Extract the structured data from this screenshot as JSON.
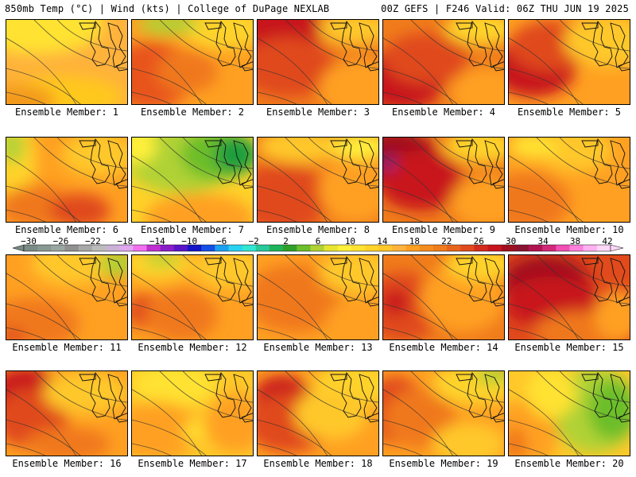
{
  "header": {
    "left": "850mb Temp (°C) | Wind (kts) | College of DuPage NEXLAB",
    "right": "00Z GEFS | F246 Valid: 06Z THU JUN 19 2025"
  },
  "members": [
    {
      "label": "Ensemble Member: 1",
      "base": "#ffb23c",
      "blobs": [
        [
          "#ffe233",
          0.25,
          0.05,
          0.55,
          0.35
        ],
        [
          "#ffc81e",
          0.45,
          0.9,
          0.5,
          0.25
        ],
        [
          "#f39a1e",
          0.1,
          0.95,
          0.3,
          0.2
        ]
      ]
    },
    {
      "label": "Ensemble Member: 2",
      "base": "#ffa022",
      "blobs": [
        [
          "#e8551c",
          0.15,
          0.65,
          0.35,
          0.4
        ],
        [
          "#ffd32a",
          0.75,
          0.1,
          0.35,
          0.25
        ],
        [
          "#b0d234",
          0.3,
          0.05,
          0.25,
          0.12
        ],
        [
          "#f0781c",
          0.45,
          0.6,
          0.25,
          0.25
        ]
      ]
    },
    {
      "label": "Ensemble Member: 3",
      "base": "#f07c1c",
      "blobs": [
        [
          "#c8141e",
          0.15,
          0.1,
          0.4,
          0.3
        ],
        [
          "#e04a1c",
          0.25,
          0.55,
          0.4,
          0.35
        ],
        [
          "#ffa022",
          0.85,
          0.8,
          0.35,
          0.35
        ],
        [
          "#ffc82a",
          0.8,
          0.1,
          0.3,
          0.2
        ]
      ]
    },
    {
      "label": "Ensemble Member: 4",
      "base": "#f07c1c",
      "blobs": [
        [
          "#c8141e",
          0.15,
          0.7,
          0.35,
          0.35
        ],
        [
          "#e04a1c",
          0.35,
          0.45,
          0.35,
          0.3
        ],
        [
          "#ffa022",
          0.85,
          0.85,
          0.3,
          0.3
        ],
        [
          "#ffd32a",
          0.8,
          0.1,
          0.3,
          0.2
        ]
      ]
    },
    {
      "label": "Ensemble Member: 5",
      "base": "#ffa022",
      "blobs": [
        [
          "#c8141e",
          0.2,
          0.55,
          0.35,
          0.35
        ],
        [
          "#e04a1c",
          0.35,
          0.3,
          0.35,
          0.3
        ],
        [
          "#ffc82a",
          0.8,
          0.25,
          0.35,
          0.3
        ]
      ]
    },
    {
      "label": "Ensemble Member: 6",
      "base": "#ffa022",
      "blobs": [
        [
          "#ffd32a",
          0.05,
          0.25,
          0.2,
          0.45
        ],
        [
          "#b0d234",
          0.05,
          0.1,
          0.1,
          0.2
        ],
        [
          "#f0781c",
          0.25,
          0.8,
          0.3,
          0.25
        ],
        [
          "#e04a1c",
          0.6,
          0.85,
          0.25,
          0.2
        ],
        [
          "#ffc82a",
          0.75,
          0.2,
          0.3,
          0.25
        ]
      ]
    },
    {
      "label": "Ensemble Member: 7",
      "base": "#ffd32a",
      "blobs": [
        [
          "#b0d234",
          0.4,
          0.25,
          0.45,
          0.4
        ],
        [
          "#6cbe2c",
          0.7,
          0.2,
          0.3,
          0.3
        ],
        [
          "#1e9e3c",
          0.85,
          0.2,
          0.18,
          0.22
        ],
        [
          "#ffa022",
          0.55,
          0.95,
          0.45,
          0.3
        ],
        [
          "#fff03a",
          0.05,
          0.1,
          0.15,
          0.2
        ]
      ]
    },
    {
      "label": "Ensemble Member: 8",
      "base": "#f07c1c",
      "blobs": [
        [
          "#e04a1c",
          0.2,
          0.7,
          0.4,
          0.4
        ],
        [
          "#ffc82a",
          0.35,
          0.1,
          0.35,
          0.2
        ],
        [
          "#ffa022",
          0.8,
          0.6,
          0.3,
          0.4
        ],
        [
          "#fff03a",
          0.85,
          0.1,
          0.25,
          0.15
        ]
      ]
    },
    {
      "label": "Ensemble Member: 9",
      "base": "#f07c1c",
      "blobs": [
        [
          "#a0101e",
          0.1,
          0.25,
          0.35,
          0.35
        ],
        [
          "#c8141e",
          0.3,
          0.5,
          0.35,
          0.35
        ],
        [
          "#7a2a8a",
          0.05,
          0.3,
          0.05,
          0.08
        ],
        [
          "#ffa022",
          0.85,
          0.75,
          0.3,
          0.3
        ],
        [
          "#ffd32a",
          0.8,
          0.1,
          0.3,
          0.2
        ]
      ]
    },
    {
      "label": "Ensemble Member: 10",
      "base": "#ffa022",
      "blobs": [
        [
          "#f0781c",
          0.15,
          0.75,
          0.35,
          0.35
        ],
        [
          "#ffc82a",
          0.55,
          0.15,
          0.3,
          0.25
        ],
        [
          "#ffe233",
          0.2,
          0.1,
          0.2,
          0.15
        ]
      ]
    },
    {
      "label": "Ensemble Member: 11",
      "base": "#ffa022",
      "blobs": [
        [
          "#f0781c",
          0.2,
          0.8,
          0.4,
          0.3
        ],
        [
          "#ffc82a",
          0.55,
          0.1,
          0.35,
          0.25
        ],
        [
          "#b0d234",
          0.9,
          0.1,
          0.15,
          0.15
        ],
        [
          "#e04a1c",
          0.05,
          0.95,
          0.1,
          0.1
        ]
      ]
    },
    {
      "label": "Ensemble Member: 12",
      "base": "#ffa022",
      "blobs": [
        [
          "#ffd32a",
          0.2,
          0.1,
          0.3,
          0.2
        ],
        [
          "#b0d234",
          0.25,
          0.05,
          0.15,
          0.08
        ],
        [
          "#e04a1c",
          0.1,
          0.65,
          0.15,
          0.2
        ],
        [
          "#f0781c",
          0.4,
          0.7,
          0.3,
          0.3
        ],
        [
          "#ffc82a",
          0.8,
          0.15,
          0.3,
          0.25
        ]
      ]
    },
    {
      "label": "Ensemble Member: 13",
      "base": "#ffa022",
      "blobs": [
        [
          "#f0781c",
          0.3,
          0.5,
          0.4,
          0.4
        ],
        [
          "#ffc82a",
          0.8,
          0.2,
          0.3,
          0.25
        ],
        [
          "#ffa022",
          0.85,
          0.8,
          0.3,
          0.3
        ]
      ]
    },
    {
      "label": "Ensemble Member: 14",
      "base": "#f07c1c",
      "blobs": [
        [
          "#e04a1c",
          0.15,
          0.6,
          0.35,
          0.4
        ],
        [
          "#c8141e",
          0.1,
          0.55,
          0.12,
          0.15
        ],
        [
          "#ffa022",
          0.65,
          0.5,
          0.35,
          0.4
        ],
        [
          "#ffd32a",
          0.8,
          0.1,
          0.3,
          0.2
        ]
      ]
    },
    {
      "label": "Ensemble Member: 15",
      "base": "#e04a1c",
      "blobs": [
        [
          "#a0101e",
          0.3,
          0.3,
          0.35,
          0.3
        ],
        [
          "#c8141e",
          0.35,
          0.55,
          0.4,
          0.3
        ],
        [
          "#f0781c",
          0.6,
          0.9,
          0.4,
          0.25
        ],
        [
          "#ffa022",
          0.9,
          0.7,
          0.2,
          0.3
        ]
      ]
    },
    {
      "label": "Ensemble Member: 16",
      "base": "#ffa022",
      "blobs": [
        [
          "#c8141e",
          0.15,
          0.3,
          0.3,
          0.35
        ],
        [
          "#e04a1c",
          0.2,
          0.55,
          0.3,
          0.35
        ],
        [
          "#ffc82a",
          0.65,
          0.25,
          0.35,
          0.25
        ],
        [
          "#f0781c",
          0.5,
          0.85,
          0.35,
          0.2
        ]
      ]
    },
    {
      "label": "Ensemble Member: 17",
      "base": "#ffc82a",
      "blobs": [
        [
          "#ffe233",
          0.35,
          0.15,
          0.35,
          0.25
        ],
        [
          "#ffa022",
          0.2,
          0.7,
          0.35,
          0.35
        ],
        [
          "#ffa022",
          0.85,
          0.6,
          0.25,
          0.35
        ],
        [
          "#ffe233",
          0.5,
          0.7,
          0.08,
          0.12
        ]
      ]
    },
    {
      "label": "Ensemble Member: 18",
      "base": "#ffa022",
      "blobs": [
        [
          "#c8141e",
          0.2,
          0.35,
          0.25,
          0.3
        ],
        [
          "#e04a1c",
          0.25,
          0.6,
          0.35,
          0.35
        ],
        [
          "#ffd32a",
          0.8,
          0.15,
          0.35,
          0.25
        ],
        [
          "#ffc82a",
          0.6,
          0.5,
          0.3,
          0.3
        ]
      ]
    },
    {
      "label": "Ensemble Member: 19",
      "base": "#ffa022",
      "blobs": [
        [
          "#e04a1c",
          0.1,
          0.45,
          0.25,
          0.4
        ],
        [
          "#f0781c",
          0.3,
          0.55,
          0.3,
          0.35
        ],
        [
          "#ffd32a",
          0.75,
          0.15,
          0.35,
          0.25
        ],
        [
          "#b0d234",
          0.9,
          0.05,
          0.15,
          0.1
        ],
        [
          "#ffc82a",
          0.7,
          0.85,
          0.3,
          0.25
        ]
      ]
    },
    {
      "label": "Ensemble Member: 20",
      "base": "#ffc82a",
      "blobs": [
        [
          "#b0d234",
          0.7,
          0.45,
          0.35,
          0.5
        ],
        [
          "#6cbe2c",
          0.85,
          0.45,
          0.2,
          0.35
        ],
        [
          "#ffa022",
          0.1,
          0.75,
          0.3,
          0.4
        ],
        [
          "#f0781c",
          0.05,
          0.85,
          0.1,
          0.2
        ],
        [
          "#ffe233",
          0.35,
          0.25,
          0.2,
          0.3
        ]
      ]
    }
  ],
  "colorbar": {
    "labels": [
      "-30",
      "-26",
      "-22",
      "-18",
      "-14",
      "-10",
      "-6",
      "-2",
      "2",
      "6",
      "10",
      "14",
      "18",
      "22",
      "26",
      "30",
      "34",
      "38",
      "42"
    ],
    "colors": [
      "#7a8a86",
      "#8a9892",
      "#9aa6a2",
      "#909090",
      "#a8a8a8",
      "#bcbcbc",
      "#c9b2d6",
      "#e0a8f0",
      "#f070f0",
      "#c030d0",
      "#8a1ec8",
      "#5a14c8",
      "#1414c8",
      "#1450e6",
      "#1ea0f0",
      "#28d2f0",
      "#32e6d2",
      "#28c89a",
      "#20b45a",
      "#2ea02a",
      "#6cbe2c",
      "#b0d234",
      "#e6e632",
      "#fff03a",
      "#ffe233",
      "#ffd32a",
      "#ffc82a",
      "#ffb23c",
      "#ffa022",
      "#f58c1e",
      "#f07c1c",
      "#e8641c",
      "#e04a1c",
      "#d22a1c",
      "#c8141e",
      "#a0101e",
      "#8a1430",
      "#b01450",
      "#d2287a",
      "#f050b4",
      "#ff80dc",
      "#ffb0f0",
      "#ffd8f8"
    ]
  }
}
